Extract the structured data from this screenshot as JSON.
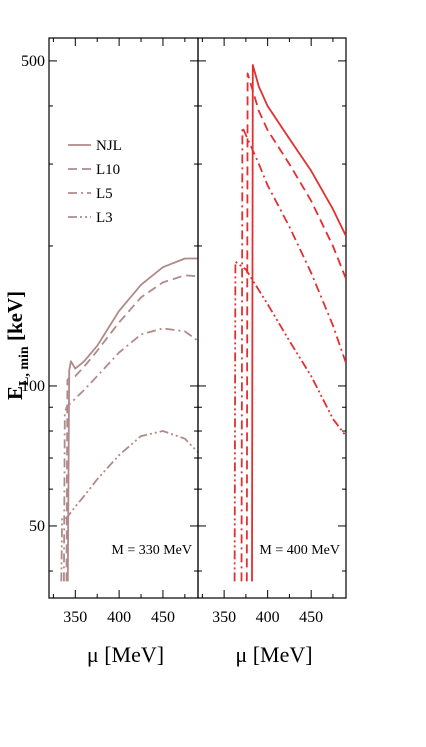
{
  "chart_data": [
    {
      "type": "line",
      "annotation": "M = 330 MeV",
      "xlabel": "μ [MeV]",
      "ylabel": "E_{L, min} [keV]",
      "x_ticks": [
        350,
        400,
        450
      ],
      "y_ticks": [
        50,
        100,
        500
      ],
      "xlim": [
        320,
        490
      ],
      "ylim": [
        35,
        560
      ],
      "y_scale": "log",
      "series": [
        {
          "name": "NJL",
          "style": "solid",
          "color": "#b08a8a",
          "x": [
            341.5,
            343,
            345,
            350,
            360,
            375,
            400,
            425,
            450,
            475,
            490
          ],
          "y": [
            38,
            108,
            113,
            109,
            113,
            122,
            145,
            165,
            180,
            188,
            188
          ]
        },
        {
          "name": "L10",
          "style": "dashed",
          "color": "#b08a8a",
          "x": [
            340,
            341,
            343,
            350,
            360,
            375,
            400,
            425,
            450,
            475,
            490
          ],
          "y": [
            38,
            103,
            104,
            105,
            110,
            119,
            137,
            155,
            167,
            173,
            172
          ]
        },
        {
          "name": "L5",
          "style": "dashdot",
          "color": "#b08a8a",
          "x": [
            337,
            338,
            340,
            350,
            360,
            375,
            400,
            425,
            450,
            475,
            490
          ],
          "y": [
            38,
            87,
            90,
            94,
            98,
            105,
            118,
            129,
            133,
            131,
            125
          ]
        },
        {
          "name": "L3",
          "style": "dashdotdot",
          "color": "#b08a8a",
          "x": [
            334,
            335,
            340,
            350,
            360,
            375,
            400,
            425,
            450,
            475,
            490
          ],
          "y": [
            38,
            52,
            52,
            55,
            58,
            63,
            71,
            78,
            80,
            77,
            72
          ]
        }
      ]
    },
    {
      "type": "line",
      "annotation": "M = 400 MeV",
      "xlabel": "μ [MeV]",
      "x_ticks": [
        350,
        400,
        450
      ],
      "xlim": [
        320,
        490
      ],
      "ylim": [
        35,
        560
      ],
      "y_scale": "log",
      "series": [
        {
          "name": "NJL",
          "style": "solid",
          "color": "#e23030",
          "x": [
            382,
            383,
            390,
            400,
            425,
            450,
            475,
            490
          ],
          "y": [
            38,
            490,
            440,
            400,
            340,
            290,
            240,
            210
          ]
        },
        {
          "name": "L10",
          "style": "dashed",
          "color": "#e23030",
          "x": [
            376,
            377,
            390,
            400,
            425,
            450,
            475,
            490
          ],
          "y": [
            38,
            470,
            390,
            355,
            300,
            250,
            200,
            170
          ]
        },
        {
          "name": "L5",
          "style": "dashdot",
          "color": "#e23030",
          "x": [
            370,
            371,
            390,
            400,
            425,
            450,
            475,
            490
          ],
          "y": [
            38,
            360,
            300,
            270,
            220,
            175,
            135,
            112
          ]
        },
        {
          "name": "L3",
          "style": "dashdotdot",
          "color": "#e23030",
          "x": [
            362,
            363,
            375,
            400,
            425,
            450,
            475,
            490
          ],
          "y": [
            38,
            185,
            178,
            150,
            125,
            105,
            85,
            78
          ]
        }
      ]
    }
  ]
}
